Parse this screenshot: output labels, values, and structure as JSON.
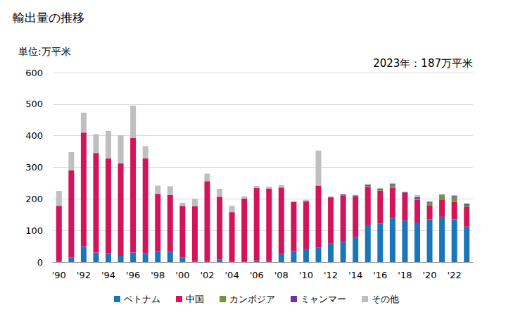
{
  "chart_data": {
    "type": "bar",
    "title": "輸出量の推移",
    "ylabel": "単位:万平米",
    "annotation": "2023年：187万平米",
    "stacked": true,
    "grid": true,
    "legend": "bottom",
    "categories": [
      "'90",
      null,
      "'92",
      null,
      "'94",
      null,
      "'96",
      null,
      "'98",
      null,
      "'00",
      null,
      "'02",
      null,
      "'04",
      null,
      "'06",
      null,
      "'08",
      null,
      "'10",
      null,
      "'12",
      null,
      "'14",
      null,
      "'16",
      null,
      "'18",
      null,
      "'20",
      null,
      "'22",
      null
    ],
    "ylim": [
      0,
      600
    ],
    "yticks": [
      0,
      100,
      200,
      300,
      400,
      500,
      600
    ],
    "series": [
      {
        "name": "ベトナム",
        "color": "#1b75bb",
        "values": [
          3,
          15,
          50,
          30,
          28,
          20,
          30,
          28,
          35,
          32,
          15,
          3,
          3,
          8,
          2,
          2,
          5,
          3,
          25,
          35,
          40,
          45,
          60,
          65,
          80,
          118,
          122,
          140,
          132,
          125,
          135,
          143,
          135,
          112
        ]
      },
      {
        "name": "中国",
        "color": "#d4145a",
        "values": [
          175,
          275,
          360,
          315,
          300,
          292,
          363,
          300,
          181,
          180,
          163,
          174,
          253,
          199,
          156,
          199,
          229,
          230,
          211,
          155,
          153,
          197,
          145,
          146,
          128,
          120,
          104,
          95,
          87,
          72,
          45,
          55,
          55,
          62
        ]
      },
      {
        "name": "カンボジア",
        "color": "#6d9a32",
        "values": [
          0,
          0,
          0,
          0,
          0,
          0,
          0,
          0,
          0,
          0,
          0,
          0,
          0,
          0,
          0,
          0,
          0,
          0,
          0,
          0,
          0,
          0,
          0,
          0,
          0,
          2,
          3,
          8,
          0,
          3,
          8,
          15,
          14,
          5
        ]
      },
      {
        "name": "ミャンマー",
        "color": "#7030a0",
        "values": [
          0,
          0,
          0,
          0,
          0,
          0,
          0,
          0,
          0,
          0,
          0,
          0,
          0,
          0,
          0,
          0,
          0,
          0,
          0,
          0,
          0,
          0,
          0,
          3,
          3,
          4,
          3,
          4,
          3,
          5,
          3,
          1,
          5,
          5
        ]
      },
      {
        "name": "その他",
        "color": "#bfbfbf",
        "values": [
          47,
          58,
          63,
          60,
          87,
          90,
          102,
          39,
          26,
          28,
          10,
          23,
          24,
          25,
          20,
          7,
          7,
          6,
          8,
          3,
          4,
          111,
          3,
          1,
          2,
          4,
          3,
          3,
          1,
          7,
          2,
          1,
          3,
          3
        ]
      }
    ]
  }
}
